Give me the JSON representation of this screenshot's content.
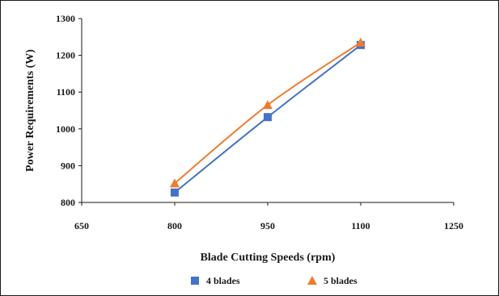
{
  "chart_data": {
    "type": "line",
    "xlabel": "Blade Cutting Speeds (rpm)",
    "ylabel": "Power Requirements (W)",
    "xlim": [
      650,
      1250
    ],
    "ylim": [
      800,
      1300
    ],
    "xticks": [
      "650",
      "800",
      "950",
      "1100",
      "1250"
    ],
    "yticks": [
      "800",
      "900",
      "1000",
      "1100",
      "1200",
      "1300"
    ],
    "grid": false,
    "legend_position": "bottom",
    "series": [
      {
        "name": "4 blades",
        "marker": "square",
        "color": "#4472c4",
        "x": [
          800,
          950,
          1100
        ],
        "y": [
          827,
          1032,
          1228
        ]
      },
      {
        "name": "5 blades",
        "marker": "triangle",
        "color": "#ed7d31",
        "x": [
          800,
          950,
          1100
        ],
        "y": [
          852,
          1065,
          1235
        ]
      }
    ]
  }
}
